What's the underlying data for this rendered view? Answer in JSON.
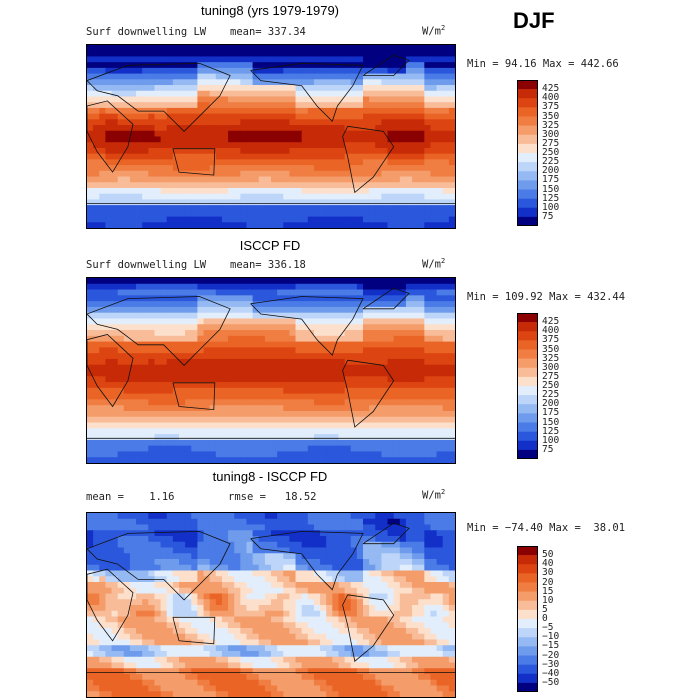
{
  "season": "DJF",
  "chart_data": [
    {
      "type": "heatmap",
      "title": "tuning8 (yrs 1979-1979)",
      "variable": "Surf downwelling LW",
      "stat_left": "mean= 337.34",
      "units": "W/m",
      "units_sup": "2",
      "minmax": "Min =  94.16 Max = 442.66",
      "min": 94.16,
      "max": 442.66,
      "mean": 337.34,
      "colorbar": {
        "levels": [
          "425",
          "400",
          "375",
          "350",
          "325",
          "300",
          "275",
          "250",
          "225",
          "200",
          "175",
          "150",
          "125",
          "100",
          "75"
        ],
        "colors": [
          "#8b0000",
          "#c62a06",
          "#dc4411",
          "#ea6426",
          "#f07e43",
          "#f49c6a",
          "#f8bc98",
          "#fde0cc",
          "#e2eefc",
          "#bcd5f8",
          "#95b9f2",
          "#6e9bec",
          "#4a7be6",
          "#2a57dc",
          "#1230c8",
          "#000080"
        ]
      },
      "field": "model"
    },
    {
      "type": "heatmap",
      "title": "ISCCP FD",
      "variable": "Surf downwelling LW",
      "stat_left": "mean= 336.18",
      "units": "W/m",
      "units_sup": "2",
      "minmax": "Min = 109.92 Max = 432.44",
      "min": 109.92,
      "max": 432.44,
      "mean": 336.18,
      "colorbar": {
        "levels": [
          "425",
          "400",
          "375",
          "350",
          "325",
          "300",
          "275",
          "250",
          "225",
          "200",
          "175",
          "150",
          "125",
          "100",
          "75"
        ],
        "colors": [
          "#8b0000",
          "#c62a06",
          "#dc4411",
          "#ea6426",
          "#f07e43",
          "#f49c6a",
          "#f8bc98",
          "#fde0cc",
          "#e2eefc",
          "#bcd5f8",
          "#95b9f2",
          "#6e9bec",
          "#4a7be6",
          "#2a57dc",
          "#1230c8",
          "#000080"
        ]
      },
      "field": "obs"
    },
    {
      "type": "heatmap",
      "title": "tuning8 - ISCCP FD",
      "variable": "mean =    1.16",
      "stat_left": "rmse =   18.52",
      "units": "W/m",
      "units_sup": "2",
      "minmax": "Min = −74.40 Max =  38.01",
      "min": -74.4,
      "max": 38.01,
      "mean": 1.16,
      "rmse": 18.52,
      "colorbar": {
        "levels": [
          "50",
          "40",
          "30",
          "20",
          "15",
          "10",
          "5",
          "0",
          "−5",
          "−10",
          "−15",
          "−20",
          "−30",
          "−40",
          "−50"
        ],
        "colors": [
          "#8b0000",
          "#c62a06",
          "#dc4411",
          "#ea6426",
          "#f07e43",
          "#f49c6a",
          "#f8bc98",
          "#fde0cc",
          "#e2eefc",
          "#bcd5f8",
          "#95b9f2",
          "#6e9bec",
          "#4a7be6",
          "#2a57dc",
          "#1230c8",
          "#000080"
        ]
      },
      "field": "diff"
    }
  ]
}
